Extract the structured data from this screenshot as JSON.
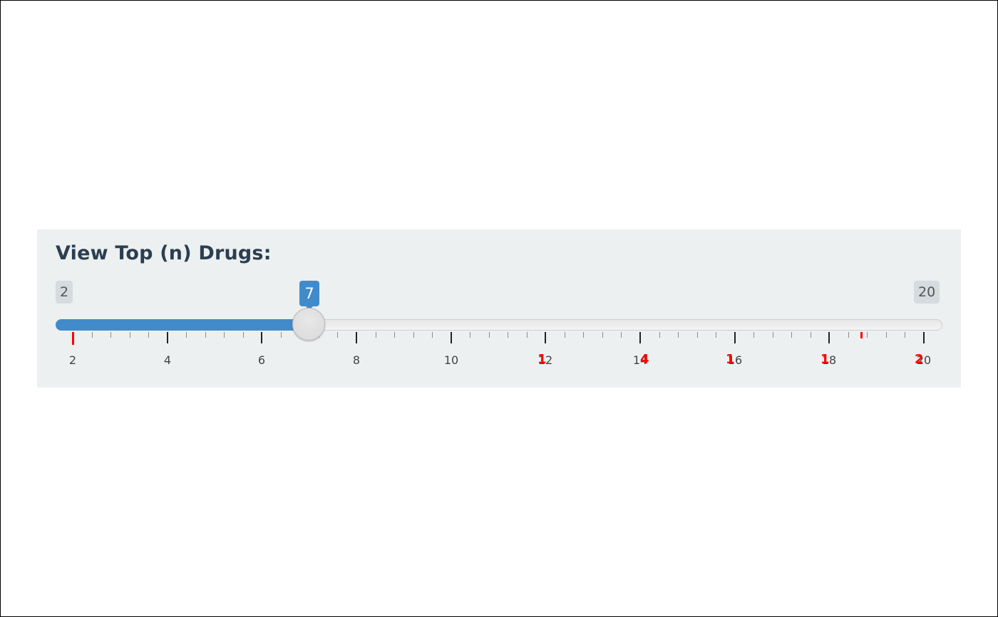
{
  "filter": {
    "label": "View Top (n) Drugs:",
    "min": 2,
    "max": 20,
    "value": 7,
    "min_text": "2",
    "max_text": "20",
    "value_text": "7",
    "grid_labels": [
      "2",
      "4",
      "6",
      "8",
      "10",
      "12",
      "14",
      "16",
      "18",
      "20"
    ],
    "overlay_labels": [
      "1",
      "4",
      "1",
      "1",
      "2"
    ]
  },
  "colors": {
    "accent": "#428bca",
    "panel": "#ecf0f1",
    "label": "#2c3e50",
    "overlay": "#ff0000"
  }
}
